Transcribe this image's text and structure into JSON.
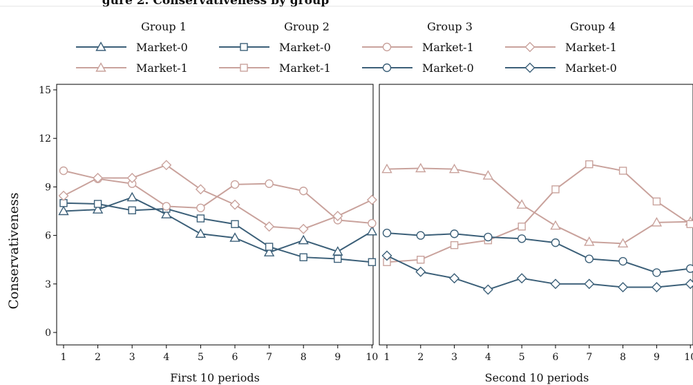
{
  "chart_data": {
    "type": "line",
    "title": "gure 2. Conservativeness by group",
    "ylabel": "Conservativeness",
    "ylim": [
      0,
      15
    ],
    "yticks": [
      0,
      3,
      6,
      9,
      12,
      15
    ],
    "grid": false,
    "legend_placement": "top",
    "colors": {
      "market0": "#3b5f78",
      "market1": "#c9a29c"
    },
    "legend": [
      {
        "group": "Group 1",
        "entries": [
          {
            "label": "Market-0",
            "marker": "triangle",
            "color_key": "market0"
          },
          {
            "label": "Market-1",
            "marker": "triangle",
            "color_key": "market1"
          }
        ]
      },
      {
        "group": "Group 2",
        "entries": [
          {
            "label": "Market-0",
            "marker": "square",
            "color_key": "market0"
          },
          {
            "label": "Market-1",
            "marker": "square",
            "color_key": "market1"
          }
        ]
      },
      {
        "group": "Group 3",
        "entries": [
          {
            "label": "Market-1",
            "marker": "circle",
            "color_key": "market1"
          },
          {
            "label": "Market-0",
            "marker": "circle",
            "color_key": "market0"
          }
        ]
      },
      {
        "group": "Group 4",
        "entries": [
          {
            "label": "Market-1",
            "marker": "diamond",
            "color_key": "market1"
          },
          {
            "label": "Market-0",
            "marker": "diamond",
            "color_key": "market0"
          }
        ]
      }
    ],
    "panels": [
      {
        "xlabel": "First 10 periods",
        "x": [
          1,
          2,
          3,
          4,
          5,
          6,
          7,
          8,
          9,
          10
        ],
        "series": [
          {
            "group": "Group 1",
            "market": "Market-0",
            "marker": "triangle",
            "color_key": "market0",
            "values": [
              7.5,
              7.6,
              8.35,
              7.3,
              6.1,
              5.85,
              4.95,
              5.7,
              5.0,
              6.25
            ]
          },
          {
            "group": "Group 2",
            "market": "Market-0",
            "marker": "square",
            "color_key": "market0",
            "values": [
              8.0,
              7.95,
              7.55,
              7.65,
              7.05,
              6.7,
              5.3,
              4.65,
              4.55,
              4.35
            ]
          },
          {
            "group": "Group 3",
            "market": "Market-1",
            "marker": "circle",
            "color_key": "market1",
            "values": [
              10.0,
              9.5,
              9.2,
              7.8,
              7.7,
              9.15,
              9.2,
              8.75,
              6.95,
              6.75
            ]
          },
          {
            "group": "Group 4",
            "market": "Market-1",
            "marker": "diamond",
            "color_key": "market1",
            "values": [
              8.45,
              9.55,
              9.55,
              10.35,
              8.85,
              7.9,
              6.55,
              6.4,
              7.2,
              8.2
            ]
          }
        ]
      },
      {
        "xlabel": "Second 10 periods",
        "x": [
          1,
          2,
          3,
          4,
          5,
          6,
          7,
          8,
          9,
          10
        ],
        "series": [
          {
            "group": "Group 1",
            "market": "Market-1",
            "marker": "triangle",
            "color_key": "market1",
            "values": [
              10.1,
              10.15,
              10.1,
              9.7,
              7.9,
              6.6,
              5.6,
              5.5,
              6.8,
              6.85
            ]
          },
          {
            "group": "Group 2",
            "market": "Market-1",
            "marker": "square",
            "color_key": "market1",
            "values": [
              4.35,
              4.5,
              5.4,
              5.7,
              6.55,
              8.85,
              10.4,
              10.0,
              8.1,
              6.7
            ]
          },
          {
            "group": "Group 3",
            "market": "Market-0",
            "marker": "circle",
            "color_key": "market0",
            "values": [
              6.15,
              6.0,
              6.1,
              5.9,
              5.8,
              5.55,
              4.55,
              4.4,
              3.7,
              3.95
            ]
          },
          {
            "group": "Group 4",
            "market": "Market-0",
            "marker": "diamond",
            "color_key": "market0",
            "values": [
              4.75,
              3.75,
              3.35,
              2.65,
              3.35,
              3.0,
              3.0,
              2.8,
              2.8,
              3.0
            ]
          }
        ]
      }
    ]
  }
}
